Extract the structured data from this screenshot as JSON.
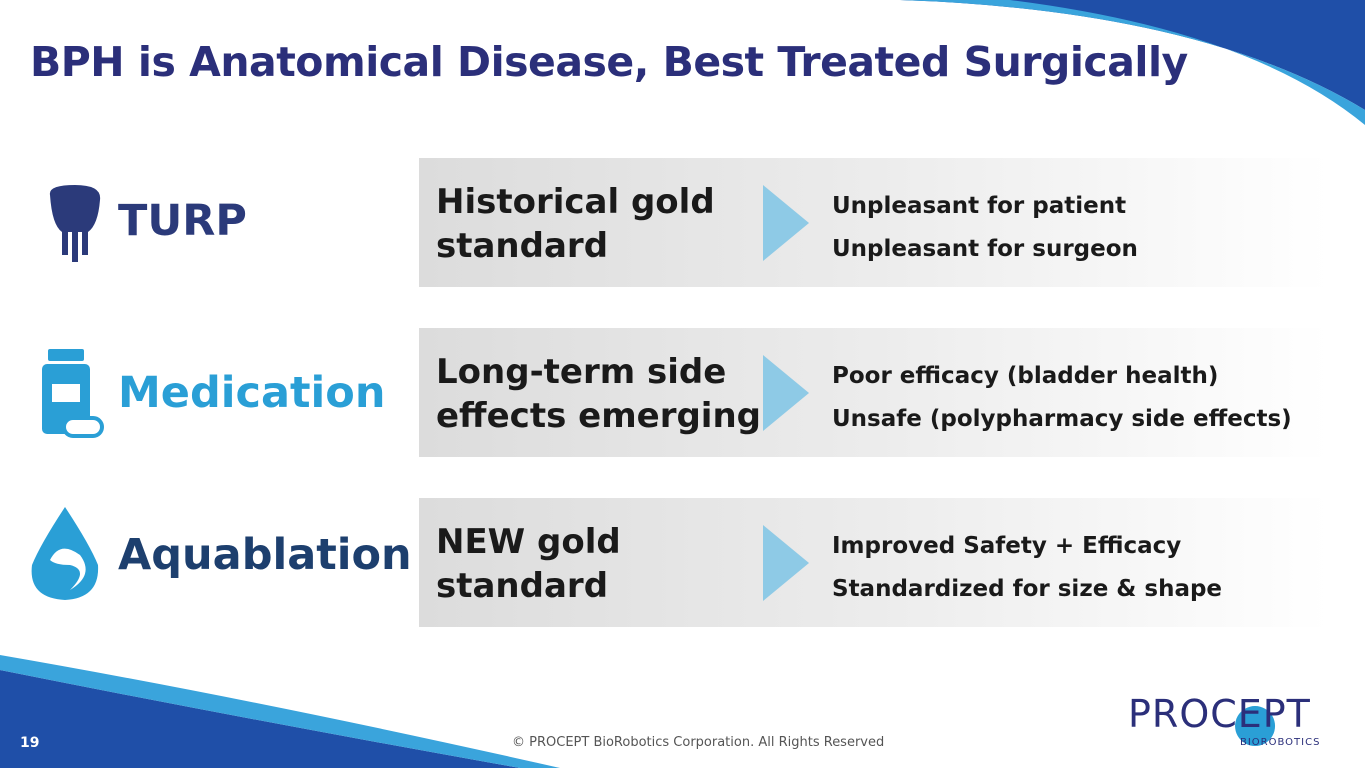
{
  "title": "BPH is Anatomical Disease, Best Treated Surgically",
  "rows": [
    {
      "name": "TURP",
      "summary": [
        "Historical gold",
        "standard"
      ],
      "points": [
        "Unpleasant for patient",
        "Unpleasant for surgeon"
      ]
    },
    {
      "name": "Medication",
      "summary": [
        "Long-term side",
        "effects emerging"
      ],
      "points": [
        "Poor efficacy (bladder health)",
        "Unsafe (polypharmacy side effects)"
      ]
    },
    {
      "name": "Aquablation",
      "summary": [
        "NEW gold",
        "standard"
      ],
      "points": [
        "Improved Safety + Efficacy",
        "Standardized for size & shape"
      ]
    }
  ],
  "footer": {
    "page": "19",
    "copyright": "© PROCEPT BioRobotics Corporation. All Rights Reserved",
    "logo": "PROCEPT",
    "logo_sub": "BioRobotics"
  }
}
